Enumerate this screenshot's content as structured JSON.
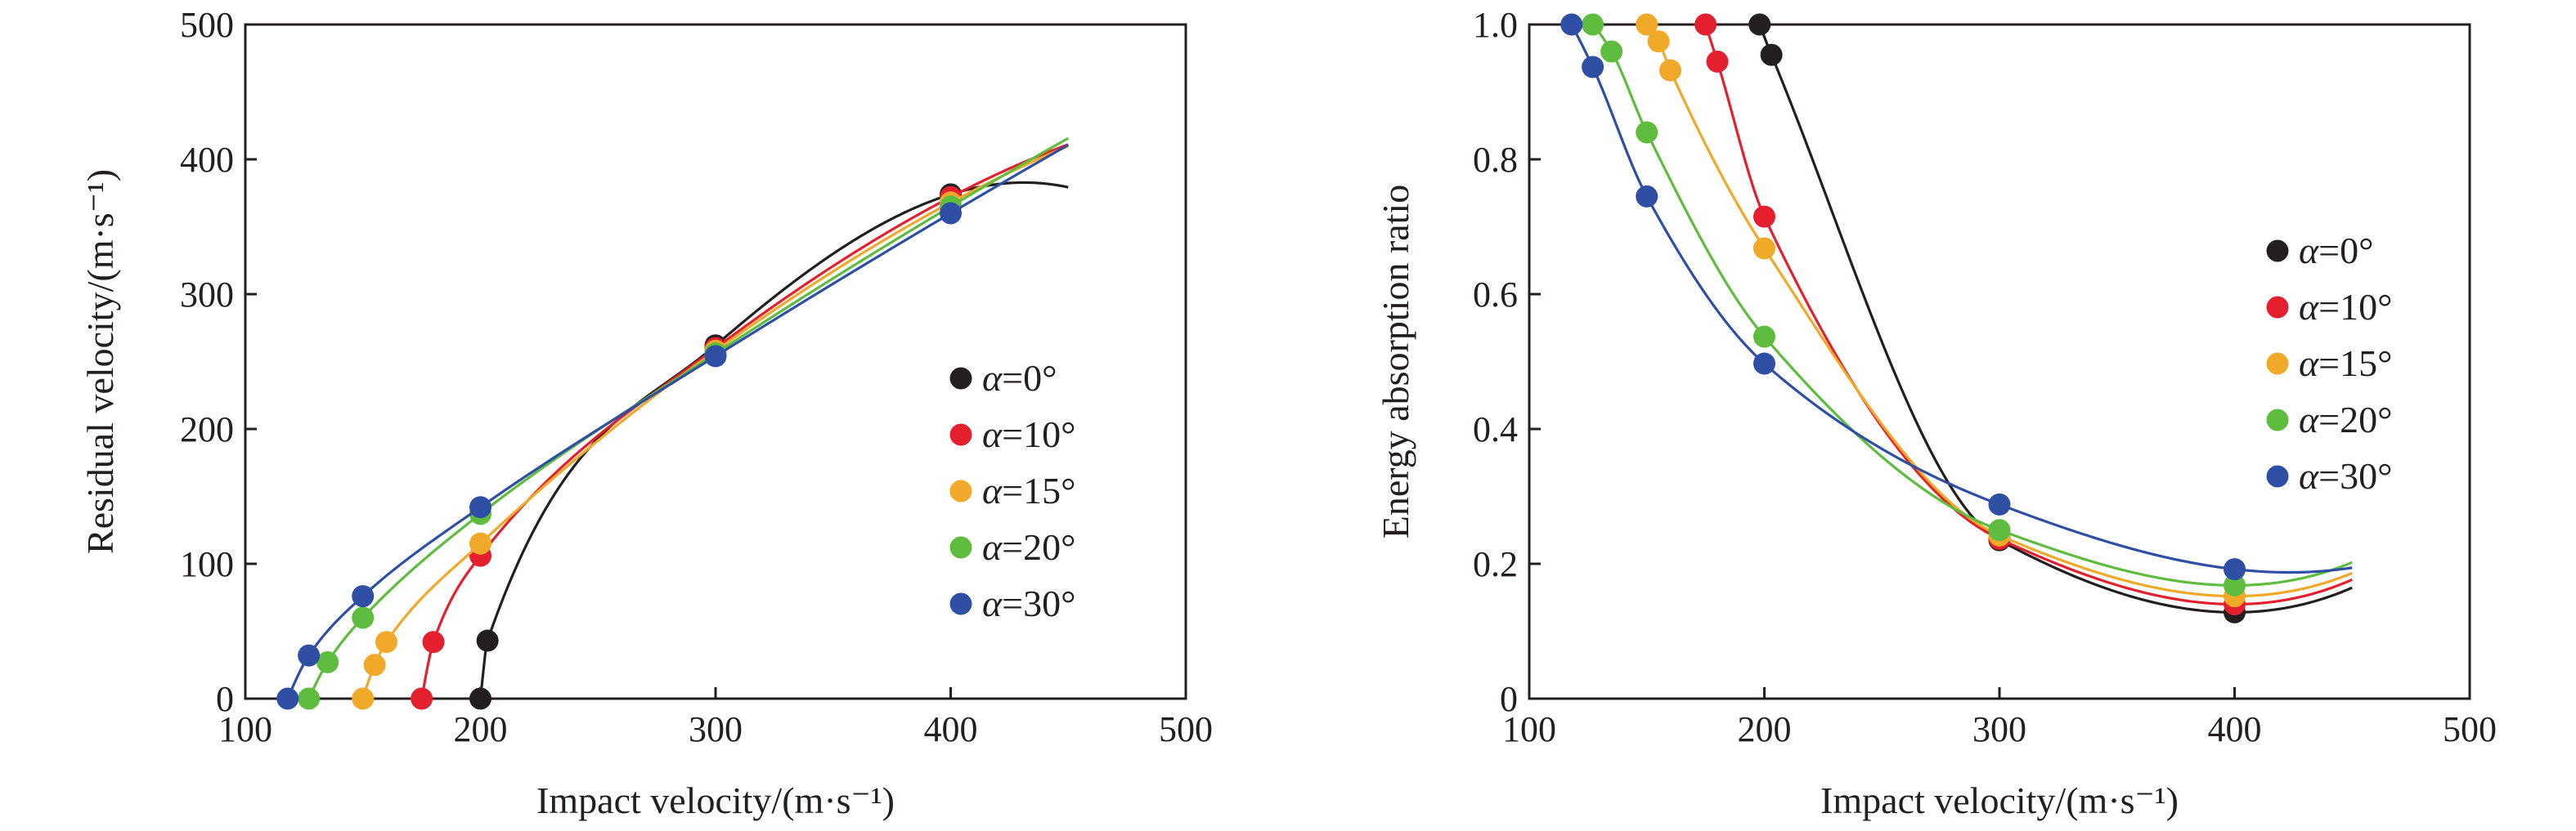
{
  "chart_data": [
    {
      "type": "scatter",
      "title": "",
      "xlabel": "Impact velocity/(m·s⁻¹)",
      "ylabel": "Residual velocity/(m·s⁻¹)",
      "xlim": [
        100,
        500
      ],
      "ylim": [
        0,
        500
      ],
      "xticks": [
        "100",
        "200",
        "300",
        "400",
        "500"
      ],
      "yticks": [
        "0",
        "100",
        "200",
        "300",
        "400",
        "500"
      ],
      "grid": false,
      "legend_position": "center-right",
      "series": [
        {
          "name": "α=0°",
          "greek": "α",
          "label_rest": "=0°",
          "color": "#231f20",
          "x": [
            200,
            203,
            300,
            400
          ],
          "y": [
            0,
            43,
            262,
            374
          ]
        },
        {
          "name": "α=10°",
          "greek": "α",
          "label_rest": "=10°",
          "color": "#e5202e",
          "x": [
            175,
            180,
            200,
            300,
            400
          ],
          "y": [
            0,
            42,
            106,
            260,
            372
          ]
        },
        {
          "name": "α=15°",
          "greek": "α",
          "label_rest": "=15°",
          "color": "#f0a929",
          "x": [
            150,
            155,
            160,
            200,
            300,
            400
          ],
          "y": [
            0,
            25,
            42,
            115,
            258,
            368
          ]
        },
        {
          "name": "α=20°",
          "greek": "α",
          "label_rest": "=20°",
          "color": "#5ebd3e",
          "x": [
            127,
            135,
            150,
            200,
            300,
            400
          ],
          "y": [
            0,
            27,
            60,
            137,
            256,
            365
          ]
        },
        {
          "name": "α=30°",
          "greek": "α",
          "label_rest": "=30°",
          "color": "#2e4fa3",
          "x": [
            118,
            127,
            150,
            200,
            300,
            400
          ],
          "y": [
            0,
            32,
            76,
            142,
            254,
            360
          ]
        }
      ]
    },
    {
      "type": "scatter",
      "title": "",
      "xlabel": "Impact velocity/(m·s⁻¹)",
      "ylabel": "Energy absorption ratio",
      "xlim": [
        100,
        500
      ],
      "ylim": [
        0,
        1.0
      ],
      "xticks": [
        "100",
        "200",
        "300",
        "400",
        "500"
      ],
      "yticks": [
        "0",
        "0.2",
        "0.4",
        "0.6",
        "0.8",
        "1.0"
      ],
      "grid": false,
      "legend_position": "center-right",
      "series": [
        {
          "name": "α=0°",
          "greek": "α",
          "label_rest": "=0°",
          "color": "#231f20",
          "x": [
            198,
            203,
            300,
            400
          ],
          "y": [
            1.0,
            0.955,
            0.235,
            0.128
          ]
        },
        {
          "name": "α=10°",
          "greek": "α",
          "label_rest": "=10°",
          "color": "#e5202e",
          "x": [
            175,
            180,
            200,
            300,
            400
          ],
          "y": [
            1.0,
            0.945,
            0.715,
            0.237,
            0.14
          ]
        },
        {
          "name": "α=15°",
          "greek": "α",
          "label_rest": "=15°",
          "color": "#f0a929",
          "x": [
            150,
            155,
            160,
            200,
            300,
            400
          ],
          "y": [
            1.0,
            0.975,
            0.932,
            0.668,
            0.242,
            0.152
          ]
        },
        {
          "name": "α=20°",
          "greek": "α",
          "label_rest": "=20°",
          "color": "#5ebd3e",
          "x": [
            127,
            135,
            150,
            200,
            300,
            400
          ],
          "y": [
            1.0,
            0.96,
            0.84,
            0.537,
            0.25,
            0.168
          ]
        },
        {
          "name": "α=30°",
          "greek": "α",
          "label_rest": "=30°",
          "color": "#2e4fa3",
          "x": [
            118,
            127,
            150,
            200,
            300,
            400
          ],
          "y": [
            1.0,
            0.937,
            0.745,
            0.497,
            0.288,
            0.192
          ]
        }
      ]
    }
  ]
}
